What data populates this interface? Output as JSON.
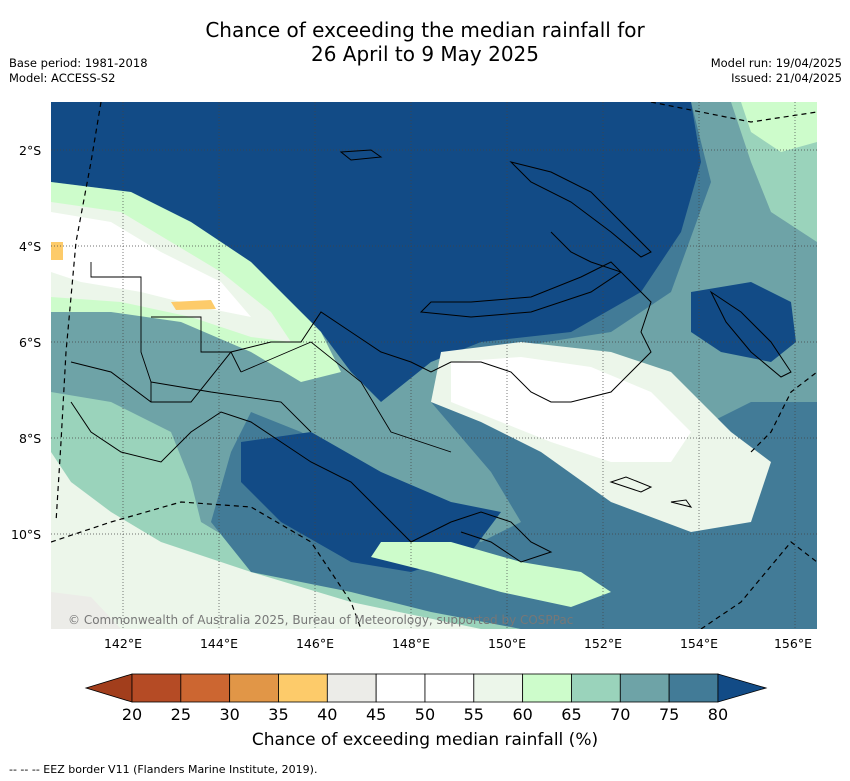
{
  "title_line1": "Chance of exceeding the median rainfall for",
  "title_line2": "26 April to 9 May 2025",
  "meta": {
    "base_period": "Base period: 1981-2018",
    "model": "Model: ACCESS-S2",
    "model_run": "Model run: 19/04/2025",
    "issued": "Issued: 21/04/2025"
  },
  "copyright": "© Commonwealth of Australia 2025, Bureau of Meteorology, supported by COSPPac",
  "lat_labels": [
    "2°S",
    "4°S",
    "6°S",
    "8°S",
    "10°S"
  ],
  "lon_labels": [
    "142°E",
    "144°E",
    "146°E",
    "148°E",
    "150°E",
    "152°E",
    "154°E",
    "156°E"
  ],
  "colorbar": {
    "title": "Chance of exceeding median rainfall (%)",
    "ticks": [
      "20",
      "25",
      "30",
      "35",
      "40",
      "45",
      "50",
      "55",
      "60",
      "65",
      "70",
      "75",
      "80"
    ],
    "colors": {
      "lt20": "#a23e1c",
      "20_25": "#b54b25",
      "25_30": "#cc6631",
      "30_35": "#e19647",
      "35_40": "#fdcb6a",
      "40_45": "#ecece8",
      "45_50": "#ffffff",
      "50_55": "#ffffff",
      "55_60": "#ecf6ea",
      "60_65": "#cdfccb",
      "65_70": "#9ad3bb",
      "70_75": "#6ea3a7",
      "75_80": "#427b97",
      "gt80": "#124b86"
    }
  },
  "footnote": "--  --  -- EEZ border V11 (Flanders Marine Institute, 2019)."
}
